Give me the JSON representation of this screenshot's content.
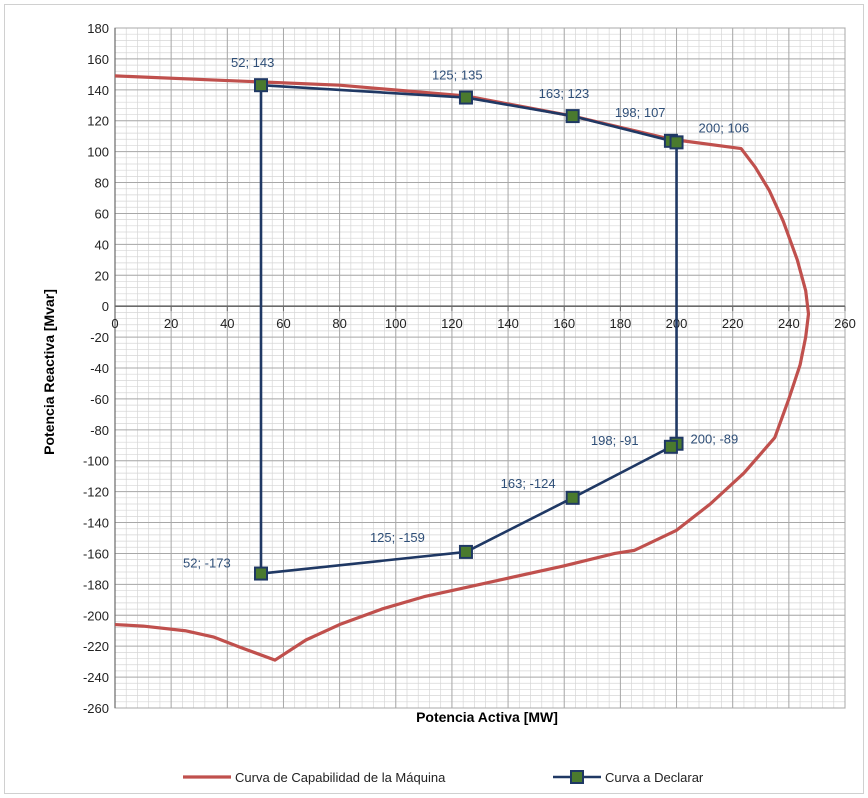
{
  "chart_data": {
    "type": "line",
    "title": "",
    "xlabel": "Potencia Activa [MW]",
    "ylabel": "Potencia Reactiva [Mvar]",
    "xlim": [
      0,
      260
    ],
    "ylim": [
      -260,
      180
    ],
    "x_ticks": [
      0,
      20,
      40,
      60,
      80,
      100,
      120,
      140,
      160,
      180,
      200,
      220,
      240,
      260
    ],
    "y_ticks": [
      180,
      160,
      140,
      120,
      100,
      80,
      60,
      40,
      20,
      0,
      -20,
      -40,
      -60,
      -80,
      -100,
      -120,
      -140,
      -160,
      -180,
      -200,
      -220,
      -240,
      -260
    ],
    "grid": true,
    "legend_position": "bottom",
    "series": [
      {
        "name": "Curva de Capabilidad de la Máquina",
        "color": "#c0504d",
        "marker": "none",
        "points": [
          [
            0,
            149
          ],
          [
            40,
            146
          ],
          [
            80,
            143
          ],
          [
            125,
            136
          ],
          [
            163,
            123
          ],
          [
            198,
            108
          ],
          [
            223,
            102
          ],
          [
            228,
            90
          ],
          [
            233,
            75
          ],
          [
            238,
            55
          ],
          [
            243,
            30
          ],
          [
            246,
            10
          ],
          [
            247,
            -5
          ],
          [
            246,
            -20
          ],
          [
            244,
            -38
          ],
          [
            240,
            -60
          ],
          [
            235,
            -85
          ],
          [
            224,
            -108
          ],
          [
            212,
            -128
          ],
          [
            200,
            -145
          ],
          [
            185,
            -158
          ],
          [
            178,
            -160
          ],
          [
            160,
            -168
          ],
          [
            140,
            -176
          ],
          [
            120,
            -184
          ],
          [
            110,
            -188
          ],
          [
            95,
            -196
          ],
          [
            80,
            -206
          ],
          [
            68,
            -216
          ],
          [
            57,
            -229
          ],
          [
            45,
            -221
          ],
          [
            35,
            -214
          ],
          [
            25,
            -210
          ],
          [
            10,
            -207
          ],
          [
            0,
            -206
          ]
        ]
      },
      {
        "name": "Curva a Declarar",
        "color": "#1f3864",
        "marker_color": "#4a7a2e",
        "marker": "square",
        "points": [
          [
            52,
            143
          ],
          [
            125,
            135
          ],
          [
            163,
            123
          ],
          [
            198,
            107
          ],
          [
            200,
            106
          ],
          [
            200,
            -89
          ],
          [
            198,
            -91
          ],
          [
            163,
            -124
          ],
          [
            125,
            -159
          ],
          [
            52,
            -173
          ],
          [
            52,
            143
          ]
        ],
        "labels": [
          {
            "x": 52,
            "y": 143,
            "text": "52; 143"
          },
          {
            "x": 125,
            "y": 135,
            "text": "125; 135"
          },
          {
            "x": 163,
            "y": 123,
            "text": "163; 123"
          },
          {
            "x": 198,
            "y": 107,
            "text": "198; 107"
          },
          {
            "x": 200,
            "y": 106,
            "text": "200; 106"
          },
          {
            "x": 198,
            "y": -91,
            "text": "198; -91"
          },
          {
            "x": 200,
            "y": -89,
            "text": "200; -89"
          },
          {
            "x": 163,
            "y": -124,
            "text": "163; -124"
          },
          {
            "x": 125,
            "y": -159,
            "text": "125; -159"
          },
          {
            "x": 52,
            "y": -173,
            "text": "52; -173"
          }
        ]
      }
    ]
  }
}
